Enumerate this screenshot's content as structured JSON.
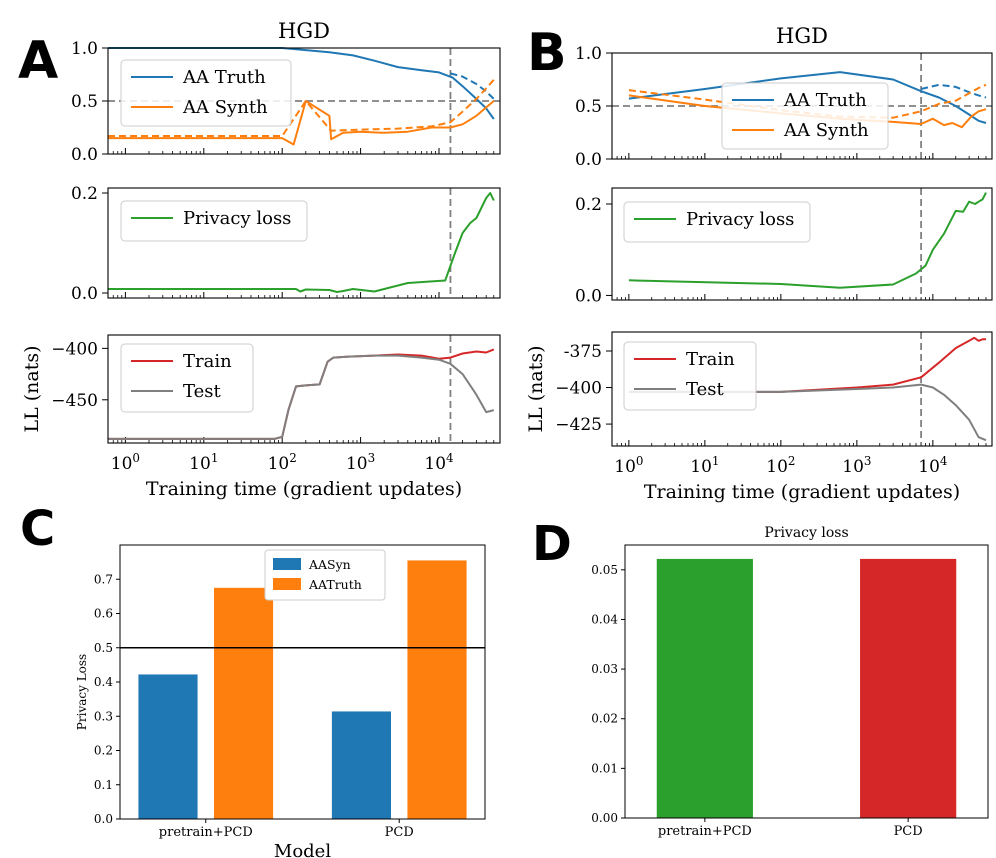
{
  "colors": {
    "blue": "#1f77b4",
    "orange": "#ff7f0e",
    "green": "#2ca02c",
    "red": "#d62728",
    "gray": "#7f7f7f",
    "dash": "#808080"
  },
  "chart_data": [
    {
      "id": "A-top",
      "panel_letter": "A",
      "type": "line",
      "title": "HGD",
      "x_scale": "log",
      "xlim": [
        0.6,
        60000
      ],
      "ylim": [
        0,
        1
      ],
      "yticks": [
        0,
        0.5,
        1
      ],
      "ytick_labels": [
        "0.0",
        "0.5",
        "1.0"
      ],
      "hline": 0.5,
      "vline": 14000,
      "legend": [
        "AA Truth",
        "AA Synth"
      ],
      "series": [
        {
          "name": "AA Truth",
          "color": "blue",
          "style": "solid",
          "x": [
            0.6,
            100,
            200,
            400,
            800,
            1500,
            3000,
            6000,
            10000,
            15000,
            20000,
            30000,
            40000,
            50000
          ],
          "y": [
            1.0,
            1.0,
            0.98,
            0.96,
            0.93,
            0.88,
            0.82,
            0.79,
            0.77,
            0.72,
            0.64,
            0.52,
            0.43,
            0.33
          ]
        },
        {
          "name": "AA Truth (dashed)",
          "color": "blue",
          "style": "dashed",
          "x": [
            14000,
            20000,
            30000,
            40000,
            50000
          ],
          "y": [
            0.76,
            0.73,
            0.66,
            0.59,
            0.52
          ]
        },
        {
          "name": "AA Synth",
          "color": "orange",
          "style": "solid",
          "x": [
            0.6,
            100,
            140,
            200,
            400,
            420,
            600,
            1000,
            2000,
            4000,
            8000,
            14000,
            20000,
            30000,
            40000,
            50000
          ],
          "y": [
            0.15,
            0.15,
            0.09,
            0.5,
            0.36,
            0.14,
            0.2,
            0.21,
            0.2,
            0.21,
            0.25,
            0.25,
            0.28,
            0.36,
            0.44,
            0.5
          ]
        },
        {
          "name": "AA Synth (dashed)",
          "color": "orange",
          "style": "dashed",
          "x": [
            0.6,
            100,
            200,
            420,
            1000,
            3000,
            8000,
            14000,
            20000,
            30000,
            40000,
            50000
          ],
          "y": [
            0.17,
            0.17,
            0.5,
            0.22,
            0.23,
            0.24,
            0.26,
            0.3,
            0.4,
            0.52,
            0.62,
            0.7
          ]
        }
      ]
    },
    {
      "id": "A-mid",
      "type": "line",
      "x_scale": "log",
      "xlim": [
        0.6,
        60000
      ],
      "ylim": [
        -0.01,
        0.21
      ],
      "yticks": [
        0,
        0.2
      ],
      "ytick_labels": [
        "0.0",
        "0.2"
      ],
      "vline": 14000,
      "legend": [
        "Privacy loss"
      ],
      "series": [
        {
          "name": "Privacy loss",
          "color": "green",
          "style": "solid",
          "x": [
            0.6,
            100,
            150,
            170,
            200,
            400,
            500,
            600,
            800,
            1500,
            4000,
            12000,
            16000,
            20000,
            25000,
            30000,
            40000,
            45000,
            50000
          ],
          "y": [
            0.008,
            0.008,
            0.008,
            0.003,
            0.007,
            0.006,
            0.002,
            0.004,
            0.008,
            0.003,
            0.02,
            0.025,
            0.08,
            0.12,
            0.14,
            0.15,
            0.19,
            0.2,
            0.185
          ]
        }
      ]
    },
    {
      "id": "A-bot",
      "type": "line",
      "x_scale": "log",
      "xlim": [
        0.6,
        60000
      ],
      "ylim": [
        -492,
        -387
      ],
      "yticks": [
        -450,
        -400
      ],
      "ytick_labels": [
        "−450",
        "−400"
      ],
      "vline": 14000,
      "ylabel": "LL (nats)",
      "xlabel": "Training time (gradient updates)",
      "xticks": [
        1,
        10,
        100,
        1000,
        10000
      ],
      "xtick_labels": [
        [
          "10",
          "0"
        ],
        [
          "10",
          "1"
        ],
        [
          "10",
          "2"
        ],
        [
          "10",
          "3"
        ],
        [
          "10",
          "4"
        ]
      ],
      "legend": [
        "Train",
        "Test"
      ],
      "series": [
        {
          "name": "Train",
          "color": "red",
          "style": "solid",
          "x": [
            0.6,
            80,
            100,
            120,
            150,
            200,
            300,
            380,
            450,
            700,
            1500,
            3000,
            6000,
            10000,
            14000,
            20000,
            30000,
            40000,
            50000
          ],
          "y": [
            -488,
            -488,
            -486,
            -460,
            -437,
            -436,
            -435,
            -413,
            -409,
            -408,
            -407,
            -406,
            -407,
            -410,
            -409,
            -405,
            -403,
            -404,
            -401
          ]
        },
        {
          "name": "Test",
          "color": "gray",
          "style": "solid",
          "x": [
            0.6,
            80,
            100,
            120,
            150,
            200,
            300,
            380,
            450,
            700,
            1500,
            3000,
            6000,
            10000,
            14000,
            20000,
            30000,
            40000,
            50000
          ],
          "y": [
            -488,
            -488,
            -486,
            -460,
            -437,
            -436,
            -435,
            -413,
            -409,
            -408,
            -407,
            -407,
            -409,
            -411,
            -415,
            -425,
            -445,
            -462,
            -460
          ]
        }
      ]
    },
    {
      "id": "B-top",
      "panel_letter": "B",
      "type": "line",
      "title": "HGD",
      "x_scale": "log",
      "xlim": [
        0.6,
        60000
      ],
      "ylim": [
        0,
        1
      ],
      "yticks": [
        0,
        0.5,
        1
      ],
      "ytick_labels": [
        "0.0",
        "0.5",
        "1.0"
      ],
      "hline": 0.5,
      "vline": 7000,
      "legend": [
        "AA Truth",
        "AA Synth"
      ],
      "series": [
        {
          "name": "AA Truth",
          "color": "blue",
          "style": "solid",
          "x": [
            1,
            10,
            100,
            600,
            3000,
            7000,
            12000,
            20000,
            30000,
            40000,
            50000
          ],
          "y": [
            0.57,
            0.66,
            0.76,
            0.82,
            0.75,
            0.64,
            0.58,
            0.5,
            0.42,
            0.36,
            0.34
          ]
        },
        {
          "name": "AA Truth (dashed)",
          "color": "blue",
          "style": "dashed",
          "x": [
            7000,
            12000,
            20000,
            30000,
            40000,
            50000
          ],
          "y": [
            0.66,
            0.7,
            0.68,
            0.63,
            0.6,
            0.58
          ]
        },
        {
          "name": "AA Synth",
          "color": "orange",
          "style": "solid",
          "x": [
            1,
            10,
            100,
            600,
            3000,
            7000,
            10000,
            14000,
            18000,
            24000,
            32000,
            40000,
            50000
          ],
          "y": [
            0.6,
            0.5,
            0.43,
            0.38,
            0.35,
            0.33,
            0.38,
            0.32,
            0.34,
            0.3,
            0.4,
            0.45,
            0.47
          ]
        },
        {
          "name": "AA Synth (dashed)",
          "color": "orange",
          "style": "dashed",
          "x": [
            1,
            10,
            100,
            600,
            3000,
            7000,
            12000,
            20000,
            30000,
            40000,
            50000
          ],
          "y": [
            0.65,
            0.56,
            0.46,
            0.4,
            0.39,
            0.45,
            0.52,
            0.55,
            0.62,
            0.67,
            0.7
          ]
        }
      ]
    },
    {
      "id": "B-mid",
      "type": "line",
      "x_scale": "log",
      "xlim": [
        0.6,
        60000
      ],
      "ylim": [
        -0.01,
        0.235
      ],
      "yticks": [
        0,
        0.2
      ],
      "ytick_labels": [
        "0.0",
        "0.2"
      ],
      "vline": 7000,
      "legend": [
        "Privacy loss"
      ],
      "series": [
        {
          "name": "Privacy loss",
          "color": "green",
          "style": "solid",
          "x": [
            1,
            100,
            600,
            3000,
            6000,
            8000,
            10000,
            14000,
            20000,
            25000,
            30000,
            36000,
            40000,
            45000,
            50000
          ],
          "y": [
            0.033,
            0.025,
            0.017,
            0.024,
            0.048,
            0.065,
            0.1,
            0.135,
            0.185,
            0.183,
            0.205,
            0.2,
            0.205,
            0.21,
            0.225
          ]
        }
      ]
    },
    {
      "id": "B-bot",
      "type": "line",
      "x_scale": "log",
      "xlim": [
        0.6,
        60000
      ],
      "ylim": [
        -440,
        -362
      ],
      "yticks": [
        -425,
        -400,
        -375
      ],
      "ytick_labels": [
        "−425",
        "−400",
        "-375"
      ],
      "vline": 7000,
      "ylabel": "LL (nats)",
      "xlabel": "Training time (gradient updates)",
      "xticks": [
        1,
        10,
        100,
        1000,
        10000
      ],
      "xtick_labels": [
        [
          "10",
          "0"
        ],
        [
          "10",
          "1"
        ],
        [
          "10",
          "2"
        ],
        [
          "10",
          "3"
        ],
        [
          "10",
          "4"
        ]
      ],
      "legend": [
        "Train",
        "Test"
      ],
      "series": [
        {
          "name": "Train",
          "color": "red",
          "style": "solid",
          "x": [
            1,
            100,
            1000,
            3000,
            7000,
            12000,
            20000,
            30000,
            35000,
            40000,
            45000,
            50000
          ],
          "y": [
            -403,
            -403,
            -400,
            -398,
            -393,
            -383,
            -373,
            -368,
            -366,
            -368,
            -367,
            -367
          ]
        },
        {
          "name": "Test",
          "color": "gray",
          "style": "solid",
          "x": [
            1,
            100,
            1000,
            3000,
            7000,
            10000,
            14000,
            20000,
            30000,
            40000,
            50000
          ],
          "y": [
            -403,
            -403,
            -401,
            -400,
            -398,
            -400,
            -405,
            -412,
            -422,
            -434,
            -436
          ]
        }
      ]
    },
    {
      "id": "C",
      "panel_letter": "C",
      "type": "bar",
      "categories": [
        "pretrain+PCD",
        "PCD"
      ],
      "series": [
        {
          "name": "AASyn",
          "color": "blue",
          "values": [
            0.422,
            0.314
          ]
        },
        {
          "name": "AATruth",
          "color": "orange",
          "values": [
            0.675,
            0.755
          ]
        }
      ],
      "ylim": [
        0,
        0.8
      ],
      "yticks": [
        0,
        0.1,
        0.2,
        0.3,
        0.4,
        0.5,
        0.6,
        0.7
      ],
      "ytick_labels": [
        "0.0",
        "0.1",
        "0.2",
        "0.3",
        "0.4",
        "0.5",
        "0.6",
        "0.7"
      ],
      "hline": 0.5,
      "xlabel": "Model",
      "ylabel": "Privacy Loss",
      "legend_position": "top-center"
    },
    {
      "id": "D",
      "panel_letter": "D",
      "type": "bar",
      "title": "Privacy loss",
      "categories": [
        "pretrain+PCD",
        "PCD"
      ],
      "values": [
        0.0522,
        0.0522
      ],
      "bar_colors": [
        "green",
        "red"
      ],
      "ylim": [
        0,
        0.055
      ],
      "yticks": [
        0,
        0.01,
        0.02,
        0.03,
        0.04,
        0.05
      ],
      "ytick_labels": [
        "0.00",
        "0.01",
        "0.02",
        "0.03",
        "0.04",
        "0.05"
      ]
    }
  ]
}
